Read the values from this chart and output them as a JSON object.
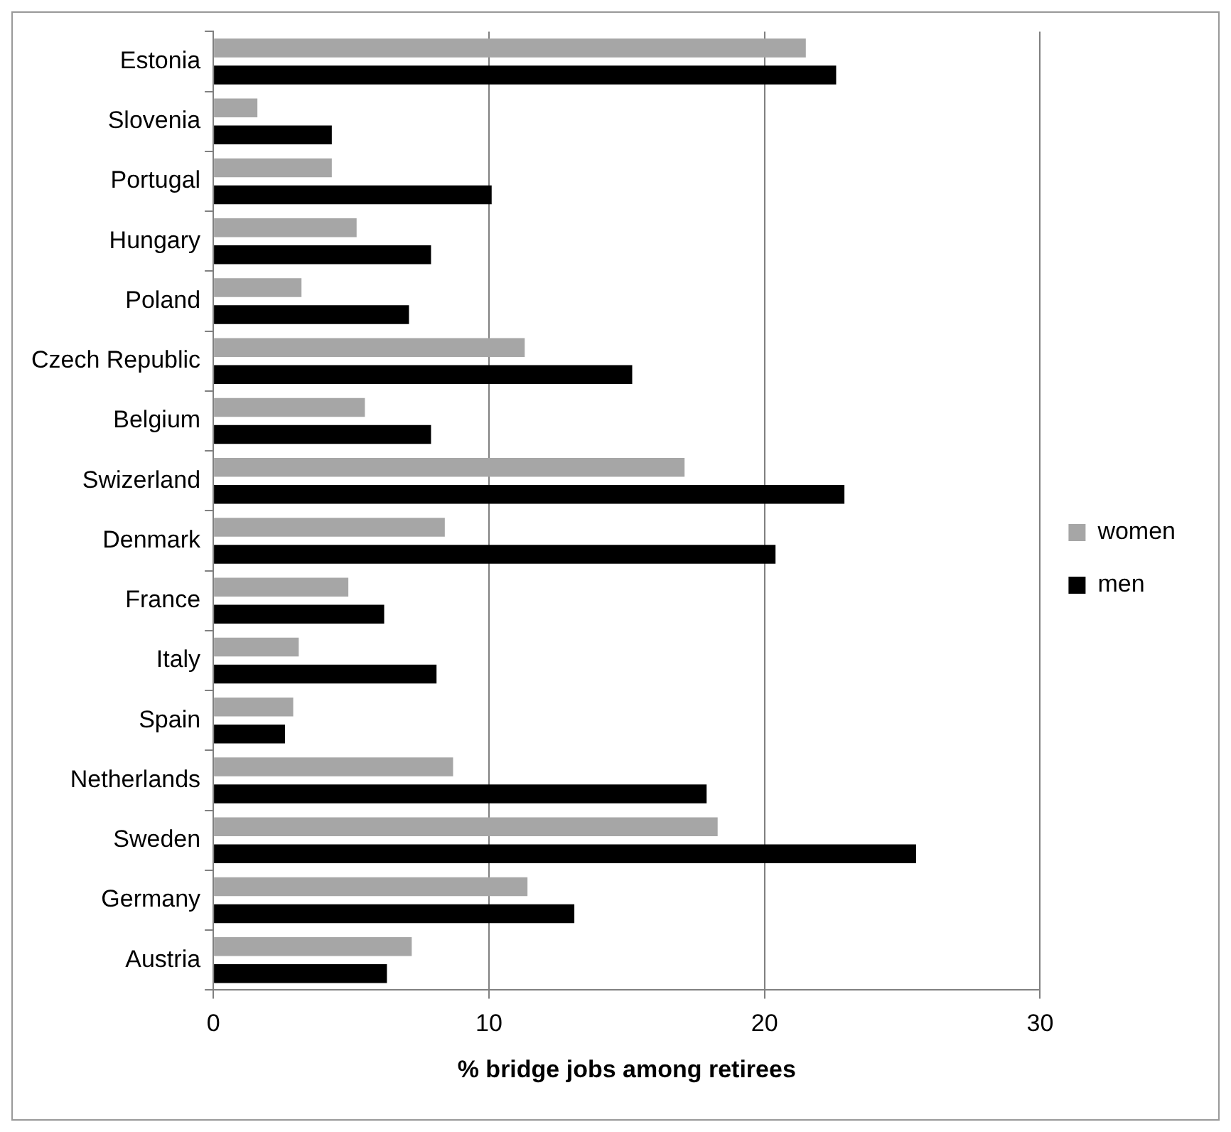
{
  "chart_data": {
    "type": "bar",
    "orientation": "horizontal",
    "xlabel": "% bridge jobs among retirees",
    "categories": [
      "Estonia",
      "Slovenia",
      "Portugal",
      "Hungary",
      "Poland",
      "Czech Republic",
      "Belgium",
      "Swizerland",
      "Denmark",
      "France",
      "Italy",
      "Spain",
      "Netherlands",
      "Sweden",
      "Germany",
      "Austria"
    ],
    "series": [
      {
        "name": "women",
        "color": "#a6a6a6",
        "values": [
          21.5,
          1.6,
          4.3,
          5.2,
          3.2,
          11.3,
          5.5,
          17.1,
          8.4,
          4.9,
          3.1,
          2.9,
          8.7,
          18.3,
          11.4,
          7.2
        ]
      },
      {
        "name": "men",
        "color": "#000000",
        "values": [
          22.6,
          4.3,
          10.1,
          7.9,
          7.1,
          15.2,
          7.9,
          22.9,
          20.4,
          6.2,
          8.1,
          2.6,
          17.9,
          25.5,
          13.1,
          6.3
        ]
      }
    ],
    "xlim": [
      0,
      30
    ],
    "xticks": [
      0,
      10,
      20,
      30
    ],
    "grid": "x",
    "legend": "right"
  }
}
